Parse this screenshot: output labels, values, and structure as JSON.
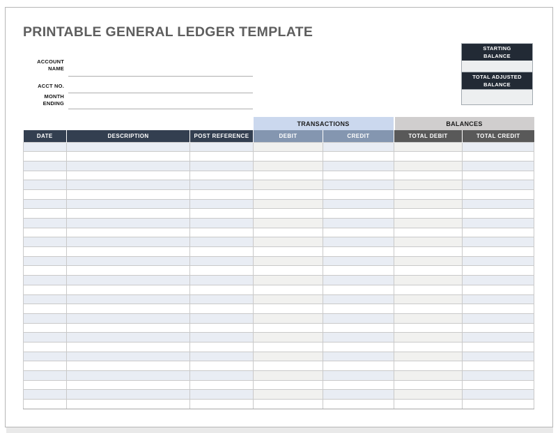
{
  "page": {
    "title": "PRINTABLE GENERAL LEDGER TEMPLATE"
  },
  "form": {
    "fields": [
      {
        "label": "ACCOUNT\nNAME",
        "value": ""
      },
      {
        "label": "ACCT NO.",
        "value": ""
      },
      {
        "label": "MONTH\nENDING",
        "value": ""
      }
    ]
  },
  "balance_box": {
    "starting": {
      "label": "STARTING\nBALANCE",
      "value": ""
    },
    "adjusted": {
      "label": "TOTAL ADJUSTED\nBALANCE",
      "value": ""
    }
  },
  "table": {
    "groups": [
      {
        "label": "TRANSACTIONS"
      },
      {
        "label": "BALANCES"
      }
    ],
    "columns": [
      "DATE",
      "DESCRIPTION",
      "POST REFERENCE",
      "DEBIT",
      "CREDIT",
      "TOTAL DEBIT",
      "TOTAL CREDIT"
    ],
    "row_count": 28,
    "all_cells_empty": true
  },
  "colors": {
    "header_dark_navy": "#333F50",
    "box_dark_navy": "#222A35",
    "transactions_light_blue": "#CBD8EE",
    "balances_light_gray": "#D0CECE",
    "debit_credit_blue_gray": "#8496B0",
    "totals_dark_gray": "#595959",
    "stripe_blue": "#E9EDF4",
    "stripe_gray": "#F1F1EF",
    "title_gray": "#5E5E5E"
  }
}
